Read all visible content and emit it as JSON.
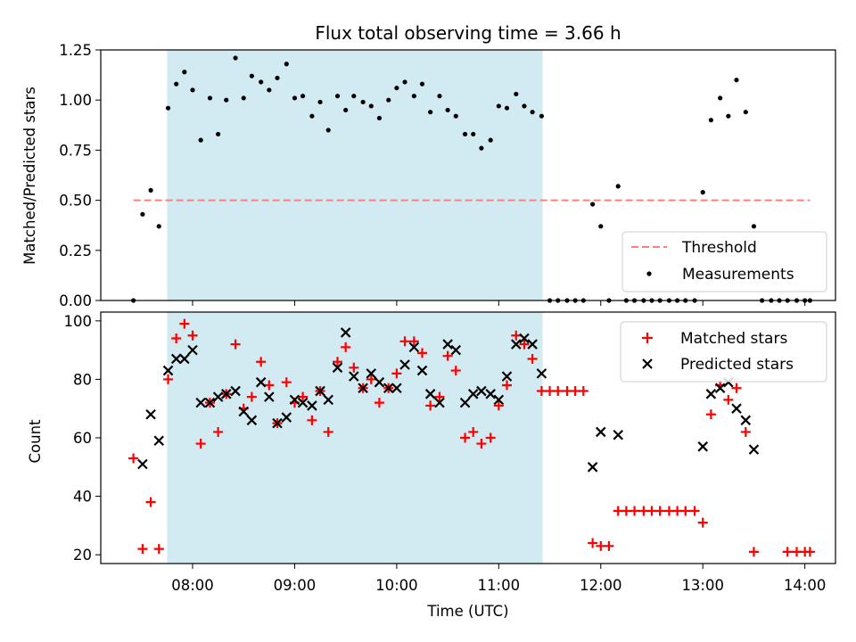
{
  "title": "Flux total observing time = 3.66 h",
  "colors": {
    "shade": "#add8e6",
    "threshold": "#ff7f7f",
    "measurement": "#000000",
    "matched": "#ff0000",
    "predicted": "#000000"
  },
  "chart_data": [
    {
      "type": "scatter",
      "ylabel": "Matched/Predicted stars",
      "xlim": [
        7.1,
        14.3
      ],
      "ylim": [
        0,
        1.25
      ],
      "yticks": [
        0,
        0.25,
        0.5,
        0.75,
        1.0,
        1.25
      ],
      "ytick_labels": [
        "0.00",
        "0.25",
        "0.50",
        "0.75",
        "1.00",
        "1.25"
      ],
      "shaded_span": [
        7.75,
        11.43
      ],
      "legend": {
        "location": "lower right",
        "entries": [
          "Threshold",
          "Measurements"
        ]
      },
      "threshold": {
        "name": "Threshold",
        "y": 0.5,
        "x_range": [
          7.42,
          14.05
        ]
      },
      "series": [
        {
          "name": "Measurements",
          "x": [
            7.42,
            7.51,
            7.59,
            7.67,
            7.76,
            7.84,
            7.92,
            8.0,
            8.08,
            8.17,
            8.25,
            8.33,
            8.42,
            8.5,
            8.58,
            8.67,
            8.75,
            8.83,
            8.92,
            9.0,
            9.08,
            9.17,
            9.25,
            9.33,
            9.42,
            9.5,
            9.58,
            9.67,
            9.75,
            9.83,
            9.92,
            10.0,
            10.08,
            10.17,
            10.25,
            10.33,
            10.42,
            10.5,
            10.58,
            10.67,
            10.75,
            10.83,
            10.92,
            11.0,
            11.08,
            11.17,
            11.25,
            11.33,
            11.42,
            11.5,
            11.58,
            11.67,
            11.75,
            11.83,
            11.92,
            12.0,
            12.08,
            12.17,
            12.25,
            12.33,
            12.42,
            12.5,
            12.58,
            12.67,
            12.75,
            12.83,
            12.92,
            13.0,
            13.08,
            13.17,
            13.25,
            13.33,
            13.42,
            13.5,
            13.58,
            13.67,
            13.75,
            13.83,
            13.92,
            14.0,
            14.05
          ],
          "y": [
            0.0,
            0.43,
            0.55,
            0.37,
            0.96,
            1.08,
            1.14,
            1.05,
            0.8,
            1.01,
            0.83,
            1.0,
            1.21,
            1.01,
            1.12,
            1.09,
            1.05,
            1.11,
            1.18,
            1.01,
            1.02,
            0.92,
            0.99,
            0.85,
            1.02,
            0.95,
            1.02,
            0.99,
            0.97,
            0.91,
            1.0,
            1.06,
            1.09,
            1.02,
            1.08,
            0.94,
            1.02,
            0.95,
            0.92,
            0.83,
            0.83,
            0.76,
            0.8,
            0.97,
            0.96,
            1.03,
            0.97,
            0.94,
            0.92,
            0.0,
            0.0,
            0.0,
            0.0,
            0.0,
            0.48,
            0.37,
            0.0,
            0.57,
            0.0,
            0.0,
            0.0,
            0.0,
            0.0,
            0.0,
            0.0,
            0.0,
            0.0,
            0.54,
            0.9,
            1.01,
            0.92,
            1.1,
            0.94,
            0.37,
            0.0,
            0.0,
            0.0,
            0.0,
            0.0,
            0.0,
            0.0
          ]
        }
      ]
    },
    {
      "type": "scatter",
      "ylabel": "Count",
      "xlabel": "Time (UTC)",
      "xlim": [
        7.1,
        14.3
      ],
      "ylim": [
        17,
        103
      ],
      "yticks": [
        20,
        40,
        60,
        80,
        100
      ],
      "xticks": [
        8,
        9,
        10,
        11,
        12,
        13,
        14
      ],
      "xtick_labels": [
        "08:00",
        "09:00",
        "10:00",
        "11:00",
        "12:00",
        "13:00",
        "14:00"
      ],
      "shaded_span": [
        7.75,
        11.43
      ],
      "legend": {
        "location": "upper right",
        "entries": [
          "Matched stars",
          "Predicted stars"
        ]
      },
      "series": [
        {
          "name": "Matched stars",
          "x": [
            7.42,
            7.51,
            7.59,
            7.67,
            7.76,
            7.84,
            7.92,
            8.0,
            8.08,
            8.17,
            8.25,
            8.33,
            8.42,
            8.5,
            8.58,
            8.67,
            8.75,
            8.83,
            8.92,
            9.0,
            9.08,
            9.17,
            9.25,
            9.33,
            9.42,
            9.5,
            9.58,
            9.67,
            9.75,
            9.83,
            9.92,
            10.0,
            10.08,
            10.17,
            10.25,
            10.33,
            10.42,
            10.5,
            10.58,
            10.67,
            10.75,
            10.83,
            10.92,
            11.0,
            11.08,
            11.17,
            11.25,
            11.33,
            11.42,
            11.5,
            11.58,
            11.67,
            11.75,
            11.83,
            11.92,
            12.0,
            12.08,
            12.17,
            12.25,
            12.33,
            12.42,
            12.5,
            12.58,
            12.67,
            12.75,
            12.83,
            12.92,
            13.0,
            13.08,
            13.17,
            13.25,
            13.33,
            13.42,
            13.5,
            13.83,
            13.92,
            14.0,
            14.05
          ],
          "y": [
            53,
            22,
            38,
            22,
            80,
            94,
            99,
            95,
            58,
            72,
            62,
            75,
            92,
            70,
            74,
            86,
            78,
            65,
            79,
            72,
            74,
            66,
            76,
            62,
            86,
            91,
            84,
            77,
            80,
            72,
            77,
            82,
            93,
            93,
            89,
            71,
            74,
            88,
            83,
            60,
            62,
            58,
            60,
            71,
            78,
            95,
            92,
            87,
            76,
            76,
            76,
            76,
            76,
            76,
            24,
            23,
            23,
            35,
            35,
            35,
            35,
            35,
            35,
            35,
            35,
            35,
            35,
            31,
            68,
            78,
            73,
            77,
            62,
            21,
            21,
            21,
            21,
            21
          ]
        },
        {
          "name": "Predicted stars",
          "x": [
            7.51,
            7.59,
            7.67,
            7.76,
            7.84,
            7.92,
            8.0,
            8.08,
            8.17,
            8.25,
            8.33,
            8.42,
            8.5,
            8.58,
            8.67,
            8.75,
            8.83,
            8.92,
            9.0,
            9.08,
            9.17,
            9.25,
            9.33,
            9.42,
            9.5,
            9.58,
            9.67,
            9.75,
            9.83,
            9.92,
            10.0,
            10.08,
            10.17,
            10.25,
            10.33,
            10.42,
            10.5,
            10.58,
            10.67,
            10.75,
            10.83,
            10.92,
            11.0,
            11.08,
            11.17,
            11.25,
            11.33,
            11.42,
            11.92,
            12.0,
            12.17,
            13.0,
            13.08,
            13.17,
            13.25,
            13.33,
            13.42,
            13.5
          ],
          "y": [
            51,
            68,
            59,
            83,
            87,
            87,
            90,
            72,
            72,
            74,
            75,
            76,
            69,
            66,
            79,
            74,
            65,
            67,
            73,
            72,
            71,
            76,
            73,
            84,
            96,
            81,
            77,
            82,
            79,
            77,
            77,
            85,
            91,
            83,
            75,
            72,
            92,
            90,
            72,
            75,
            76,
            75,
            73,
            81,
            92,
            94,
            92,
            82,
            50,
            62,
            61,
            57,
            75,
            77,
            79,
            70,
            66,
            56
          ]
        }
      ]
    }
  ]
}
